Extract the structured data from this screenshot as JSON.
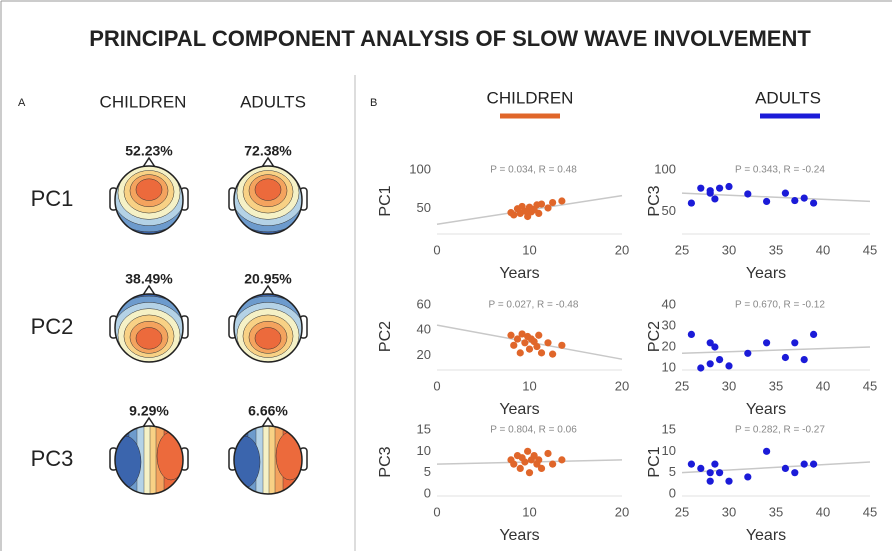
{
  "title": "PRINCIPAL COMPONENT ANALYSIS OF SLOW WAVE INVOLVEMENT",
  "panel_a": {
    "label": "A",
    "columns": [
      "CHILDREN",
      "ADULTS"
    ],
    "rows": [
      {
        "label": "PC1",
        "values": [
          "52.23%",
          "72.38%"
        ]
      },
      {
        "label": "PC2",
        "values": [
          "38.49%",
          "20.95%"
        ]
      },
      {
        "label": "PC3",
        "values": [
          "9.29%",
          "6.66%"
        ]
      }
    ]
  },
  "panel_b": {
    "label": "B",
    "columns": [
      "CHILDREN",
      "ADULTS"
    ],
    "colors": [
      "#e0662a",
      "#1b1bd8"
    ]
  },
  "chart_data": [
    {
      "type": "scatter",
      "annotation": "P = 0.034, R = 0.48",
      "ylabel": "PC1",
      "xlabel": "Years",
      "color": "#e0662a",
      "x": [
        8,
        8.3,
        8.7,
        9,
        9.2,
        9.5,
        9.8,
        10,
        10.2,
        10.5,
        10.8,
        11,
        11.3,
        12,
        12.5,
        13.5
      ],
      "y": [
        45,
        42,
        50,
        44,
        53,
        47,
        40,
        52,
        46,
        49,
        55,
        44,
        56,
        51,
        58,
        60
      ],
      "fit_x": [
        0,
        20
      ],
      "fit_y": [
        30,
        67
      ],
      "xlim": [
        0,
        20
      ],
      "ylim": [
        20,
        100
      ],
      "xticks": [
        0,
        10,
        20
      ],
      "yticks": [
        50,
        100
      ]
    },
    {
      "type": "scatter",
      "annotation": "P = 0.027, R = -0.48",
      "ylabel": "PC2",
      "xlabel": "Years",
      "color": "#e0662a",
      "x": [
        8,
        8.3,
        8.7,
        9,
        9.2,
        9.5,
        9.8,
        10,
        10.2,
        10.5,
        10.8,
        11,
        11.3,
        12,
        12.5,
        13.5
      ],
      "y": [
        36,
        28,
        33,
        22,
        37,
        30,
        35,
        25,
        33,
        31,
        27,
        36,
        22,
        30,
        21,
        28
      ],
      "fit_x": [
        0,
        20
      ],
      "fit_y": [
        44,
        17
      ],
      "xlim": [
        0,
        20
      ],
      "ylim": [
        10,
        60
      ],
      "xticks": [
        0,
        10,
        20
      ],
      "yticks": [
        20,
        40,
        60
      ]
    },
    {
      "type": "scatter",
      "annotation": "P = 0.804, R = 0.06",
      "ylabel": "PC3",
      "xlabel": "Years",
      "color": "#e0662a",
      "x": [
        8,
        8.3,
        8.7,
        9,
        9.2,
        9.5,
        9.8,
        10,
        10.2,
        10.5,
        10.8,
        11,
        11.3,
        12,
        12.5,
        13.5
      ],
      "y": [
        8,
        7,
        9,
        6,
        8.5,
        7.5,
        10,
        5,
        8,
        9,
        7,
        8,
        6,
        9.5,
        7,
        8
      ],
      "fit_x": [
        0,
        20
      ],
      "fit_y": [
        7,
        8
      ],
      "xlim": [
        0,
        20
      ],
      "ylim": [
        0,
        15
      ],
      "xticks": [
        0,
        10,
        20
      ],
      "yticks": [
        0,
        5,
        10,
        15
      ]
    },
    {
      "type": "scatter",
      "annotation": "P = 0.343, R = -0.24",
      "ylabel": "PC3",
      "xlabel": "Years",
      "color": "#1b1bd8",
      "x": [
        26,
        27,
        28,
        28,
        28.5,
        29,
        30,
        32,
        34,
        36,
        37,
        38,
        39
      ],
      "y": [
        60,
        78,
        75,
        72,
        65,
        78,
        80,
        71,
        62,
        72,
        63,
        66,
        60
      ],
      "fit_x": [
        25,
        45
      ],
      "fit_y": [
        72,
        62
      ],
      "xlim": [
        25,
        45
      ],
      "ylim": [
        25,
        100
      ],
      "xticks": [
        25,
        30,
        35,
        40,
        45
      ],
      "yticks": [
        50,
        100
      ]
    },
    {
      "type": "scatter",
      "annotation": "P = 0.670, R = -0.12",
      "ylabel": "PC2",
      "xlabel": "Years",
      "color": "#1b1bd8",
      "x": [
        26,
        27,
        28,
        28,
        28.5,
        29,
        30,
        32,
        34,
        36,
        37,
        38,
        39
      ],
      "y": [
        26,
        10,
        22,
        12,
        20,
        14,
        11,
        17,
        22,
        15,
        22,
        14,
        26
      ],
      "fit_x": [
        25,
        45
      ],
      "fit_y": [
        17,
        20
      ],
      "xlim": [
        25,
        45
      ],
      "ylim": [
        10,
        40
      ],
      "xticks": [
        25,
        30,
        35,
        40,
        45
      ],
      "yticks": [
        10,
        20,
        30,
        40
      ]
    },
    {
      "type": "scatter",
      "annotation": "P = 0.282, R = -0.27",
      "ylabel": "PC1",
      "xlabel": "Years",
      "color": "#1b1bd8",
      "x": [
        26,
        27,
        28,
        28,
        28.5,
        29,
        30,
        32,
        34,
        36,
        37,
        38,
        39
      ],
      "y": [
        7,
        6,
        5,
        3,
        7,
        5,
        3,
        4,
        10,
        6,
        5,
        7,
        7
      ],
      "fit_x": [
        25,
        45
      ],
      "fit_y": [
        5,
        7.5
      ],
      "xlim": [
        25,
        45
      ],
      "ylim": [
        0,
        15
      ],
      "xticks": [
        25,
        30,
        35,
        40,
        45
      ],
      "yticks": [
        0,
        5,
        10,
        15
      ]
    }
  ]
}
